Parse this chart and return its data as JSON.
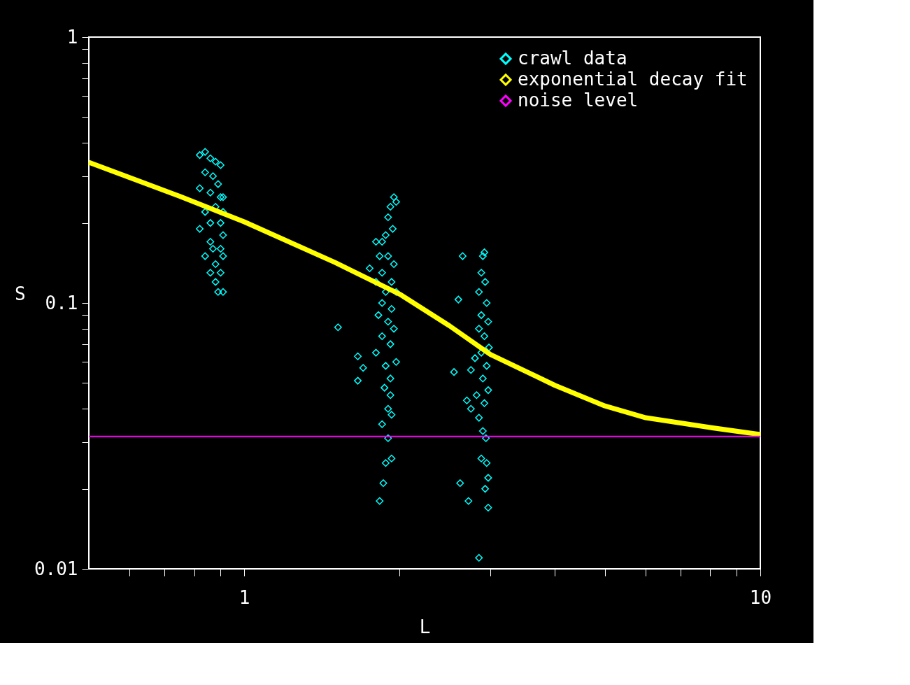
{
  "chart_data": {
    "type": "scatter",
    "xlabel": "L",
    "ylabel": "S",
    "log": "xy",
    "grid": false,
    "legend": "top right",
    "xlim": [
      0.5,
      10
    ],
    "ylim": [
      0.01,
      1
    ],
    "xticks": [
      {
        "value": 0.6,
        "label": null
      },
      {
        "value": 0.7,
        "label": null
      },
      {
        "value": 0.8,
        "label": null
      },
      {
        "value": 0.9,
        "label": null
      },
      1,
      {
        "value": 2,
        "label": null
      },
      {
        "value": 3,
        "label": null
      },
      {
        "value": 4,
        "label": null
      },
      {
        "value": 5,
        "label": null
      },
      {
        "value": 6,
        "label": null
      },
      {
        "value": 7,
        "label": null
      },
      {
        "value": 8,
        "label": null
      },
      {
        "value": 9,
        "label": null
      },
      10
    ],
    "yticks": [
      0.01,
      {
        "value": 0.02,
        "label": null
      },
      {
        "value": 0.03,
        "label": null
      },
      {
        "value": 0.04,
        "label": null
      },
      {
        "value": 0.05,
        "label": null
      },
      {
        "value": 0.06,
        "label": null
      },
      {
        "value": 0.07,
        "label": null
      },
      {
        "value": 0.08,
        "label": null
      },
      {
        "value": 0.09,
        "label": null
      },
      0.1,
      {
        "value": 0.2,
        "label": null
      },
      {
        "value": 0.3,
        "label": null
      },
      {
        "value": 0.4,
        "label": null
      },
      {
        "value": 0.5,
        "label": null
      },
      {
        "value": 0.6,
        "label": null
      },
      {
        "value": 0.7,
        "label": null
      },
      {
        "value": 0.8,
        "label": null
      },
      {
        "value": 0.9,
        "label": null
      },
      1
    ],
    "series": [
      {
        "name": "crawl data",
        "color": "#00ffff",
        "marker": "diamond",
        "x": [
          0.82,
          0.84,
          0.86,
          0.88,
          0.84,
          0.87,
          0.9,
          0.82,
          0.86,
          0.89,
          0.91,
          0.88,
          0.91,
          0.84,
          0.9,
          0.82,
          0.91,
          0.86,
          0.9,
          0.84,
          0.91,
          0.88,
          0.9,
          0.86,
          0.88,
          0.91,
          0.89,
          0.87,
          0.9,
          0.86,
          1.95,
          1.97,
          1.92,
          1.9,
          1.94,
          1.88,
          1.85,
          1.8,
          1.83,
          1.9,
          1.95,
          1.75,
          1.85,
          1.93,
          1.8,
          1.88,
          1.97,
          1.85,
          1.93,
          1.82,
          1.9,
          1.95,
          1.85,
          1.92,
          1.8,
          1.97,
          1.88,
          1.92,
          1.87,
          1.92,
          1.9,
          1.93,
          1.85,
          1.9,
          1.93,
          1.88,
          1.86,
          1.83,
          1.52,
          1.66,
          1.7,
          1.66,
          2.92,
          2.9,
          2.65,
          2.88,
          2.93,
          2.6,
          2.85,
          2.95,
          2.88,
          2.97,
          2.85,
          2.92,
          2.98,
          2.88,
          2.8,
          2.95,
          2.75,
          2.55,
          2.9,
          2.97,
          2.82,
          2.7,
          2.92,
          2.75,
          2.85,
          2.9,
          2.94,
          2.88,
          2.95,
          2.97,
          2.62,
          2.93,
          2.72,
          2.97,
          2.85
        ],
        "values": [
          0.36,
          0.37,
          0.35,
          0.34,
          0.31,
          0.3,
          0.33,
          0.27,
          0.26,
          0.28,
          0.25,
          0.23,
          0.22,
          0.22,
          0.2,
          0.19,
          0.18,
          0.17,
          0.16,
          0.15,
          0.15,
          0.14,
          0.13,
          0.13,
          0.12,
          0.11,
          0.11,
          0.16,
          0.25,
          0.2,
          0.25,
          0.24,
          0.23,
          0.21,
          0.19,
          0.18,
          0.17,
          0.17,
          0.15,
          0.15,
          0.14,
          0.135,
          0.13,
          0.12,
          0.12,
          0.11,
          0.11,
          0.1,
          0.095,
          0.09,
          0.085,
          0.08,
          0.075,
          0.07,
          0.065,
          0.06,
          0.058,
          0.052,
          0.048,
          0.045,
          0.04,
          0.038,
          0.035,
          0.031,
          0.026,
          0.025,
          0.021,
          0.018,
          0.081,
          0.063,
          0.057,
          0.051,
          0.155,
          0.15,
          0.15,
          0.13,
          0.12,
          0.103,
          0.11,
          0.1,
          0.09,
          0.085,
          0.08,
          0.075,
          0.068,
          0.065,
          0.062,
          0.058,
          0.056,
          0.055,
          0.052,
          0.047,
          0.045,
          0.043,
          0.042,
          0.04,
          0.037,
          0.033,
          0.031,
          0.026,
          0.025,
          0.022,
          0.021,
          0.02,
          0.018,
          0.017,
          0.011
        ]
      },
      {
        "name": "exponential decay fit",
        "type": "line",
        "color": "#ffff00",
        "line_style": "solid",
        "x": [
          0.5,
          0.75,
          1,
          1.5,
          2,
          2.5,
          3,
          4,
          5,
          6,
          8,
          10
        ],
        "values": [
          0.338,
          0.252,
          0.202,
          0.142,
          0.108,
          0.082,
          0.064,
          0.049,
          0.041,
          0.037,
          0.034,
          0.032
        ]
      }
    ],
    "ref_lines": [
      {
        "axis": "y",
        "value": 0.0315,
        "label": "noise level",
        "color": "#ff00ff",
        "line_style": "solid"
      }
    ]
  }
}
